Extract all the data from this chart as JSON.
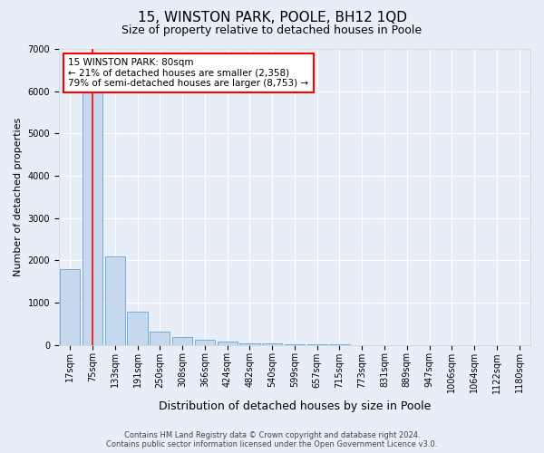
{
  "title": "15, WINSTON PARK, POOLE, BH12 1QD",
  "subtitle": "Size of property relative to detached houses in Poole",
  "xlabel": "Distribution of detached houses by size in Poole",
  "ylabel": "Number of detached properties",
  "footer_line1": "Contains HM Land Registry data © Crown copyright and database right 2024.",
  "footer_line2": "Contains public sector information licensed under the Open Government Licence v3.0.",
  "bar_color": "#c5d8ed",
  "bar_edge_color": "#7aadd4",
  "bg_color": "#e8eef7",
  "annotation_text": "15 WINSTON PARK: 80sqm\n← 21% of detached houses are smaller (2,358)\n79% of semi-detached houses are larger (8,753) →",
  "annotation_box_color": "white",
  "annotation_box_edge": "red",
  "vline_color": "red",
  "vline_x_index": 1,
  "categories": [
    "17sqm",
    "75sqm",
    "133sqm",
    "191sqm",
    "250sqm",
    "308sqm",
    "366sqm",
    "424sqm",
    "482sqm",
    "540sqm",
    "599sqm",
    "657sqm",
    "715sqm",
    "773sqm",
    "831sqm",
    "889sqm",
    "947sqm",
    "1006sqm",
    "1064sqm",
    "1122sqm",
    "1180sqm"
  ],
  "values": [
    1800,
    6400,
    2100,
    780,
    310,
    175,
    110,
    65,
    40,
    25,
    15,
    8,
    4,
    0,
    0,
    0,
    0,
    0,
    0,
    0,
    0
  ],
  "ylim": [
    0,
    7000
  ],
  "yticks": [
    0,
    1000,
    2000,
    3000,
    4000,
    5000,
    6000,
    7000
  ],
  "grid_color": "#ffffff",
  "title_fontsize": 11,
  "subtitle_fontsize": 9,
  "xlabel_fontsize": 9,
  "ylabel_fontsize": 8,
  "tick_fontsize": 7,
  "footer_fontsize": 6,
  "annotation_fontsize": 7.5
}
